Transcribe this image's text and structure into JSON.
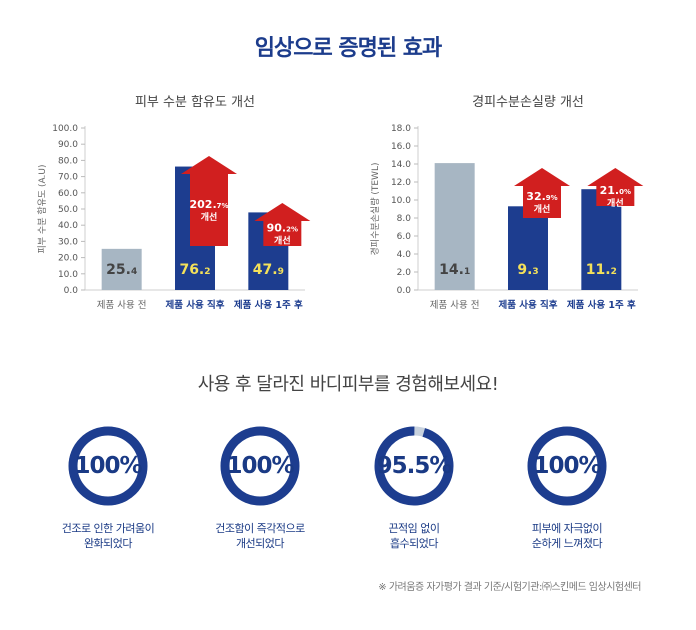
{
  "page": {
    "title": "임상으로 증명된 효과",
    "subtitle": "사용 후 달라진 바디피부를 경험해보세요!",
    "footnote": "※ 가려움증 자가평가 결과 기준/시험기관:㈜스킨메드 임상시험센터"
  },
  "colors": {
    "navy": "#1d3d8f",
    "gray_bar": "#a7b6c3",
    "arrow_red": "#d11f1f",
    "highlight_yellow": "#f4e15a",
    "ring_track": "#c8d2de"
  },
  "chart_data": [
    {
      "type": "bar",
      "title": "피부 수분 함유도 개선",
      "ylabel": "피부 수분 함유도 (A.U)",
      "ylim": [
        0,
        100
      ],
      "yticks": [
        "0.0",
        "10.0",
        "20.0",
        "30.0",
        "40.0",
        "50.0",
        "60.0",
        "70.0",
        "80.0",
        "90.0",
        "100.0"
      ],
      "categories": [
        "제품 사용 전",
        "제품 사용 직후",
        "제품 사용 1주 후"
      ],
      "values": [
        25.4,
        76.2,
        47.9
      ],
      "data_labels": [
        "25.4",
        "76.2",
        "47.9"
      ],
      "improvements": [
        {
          "category": "제품 사용 직후",
          "percent": "202.7%",
          "label": "개선"
        },
        {
          "category": "제품 사용 1주 후",
          "percent": "90.2%",
          "label": "개선"
        }
      ]
    },
    {
      "type": "bar",
      "title": "경피수분손실량 개선",
      "ylabel": "경피수분손실량 (TEWL)",
      "ylim": [
        0,
        18
      ],
      "yticks": [
        "0.0",
        "2.0",
        "4.0",
        "6.0",
        "8.0",
        "10.0",
        "12.0",
        "14.0",
        "16.0",
        "18.0"
      ],
      "categories": [
        "제품 사용 전",
        "제품 사용 직후",
        "제품 사용 1주 후"
      ],
      "values": [
        14.1,
        9.3,
        11.2
      ],
      "data_labels": [
        "14.1",
        "9.3",
        "11.2"
      ],
      "improvements": [
        {
          "category": "제품 사용 직후",
          "percent": "32.9%",
          "label": "개선"
        },
        {
          "category": "제품 사용 1주 후",
          "percent": "21.0%",
          "label": "개선"
        }
      ]
    }
  ],
  "results": [
    {
      "value": "100%",
      "fraction": 1.0,
      "caption_line1": "건조로 인한 가려움이",
      "caption_line2": "완화되었다"
    },
    {
      "value": "100%",
      "fraction": 1.0,
      "caption_line1": "건조함이 즉각적으로",
      "caption_line2": "개선되었다"
    },
    {
      "value": "95.5%",
      "fraction": 0.955,
      "caption_line1": "끈적임 없이",
      "caption_line2": "흡수되었다"
    },
    {
      "value": "100%",
      "fraction": 1.0,
      "caption_line1": "피부에 자극없이",
      "caption_line2": "순하게 느껴졌다"
    }
  ]
}
